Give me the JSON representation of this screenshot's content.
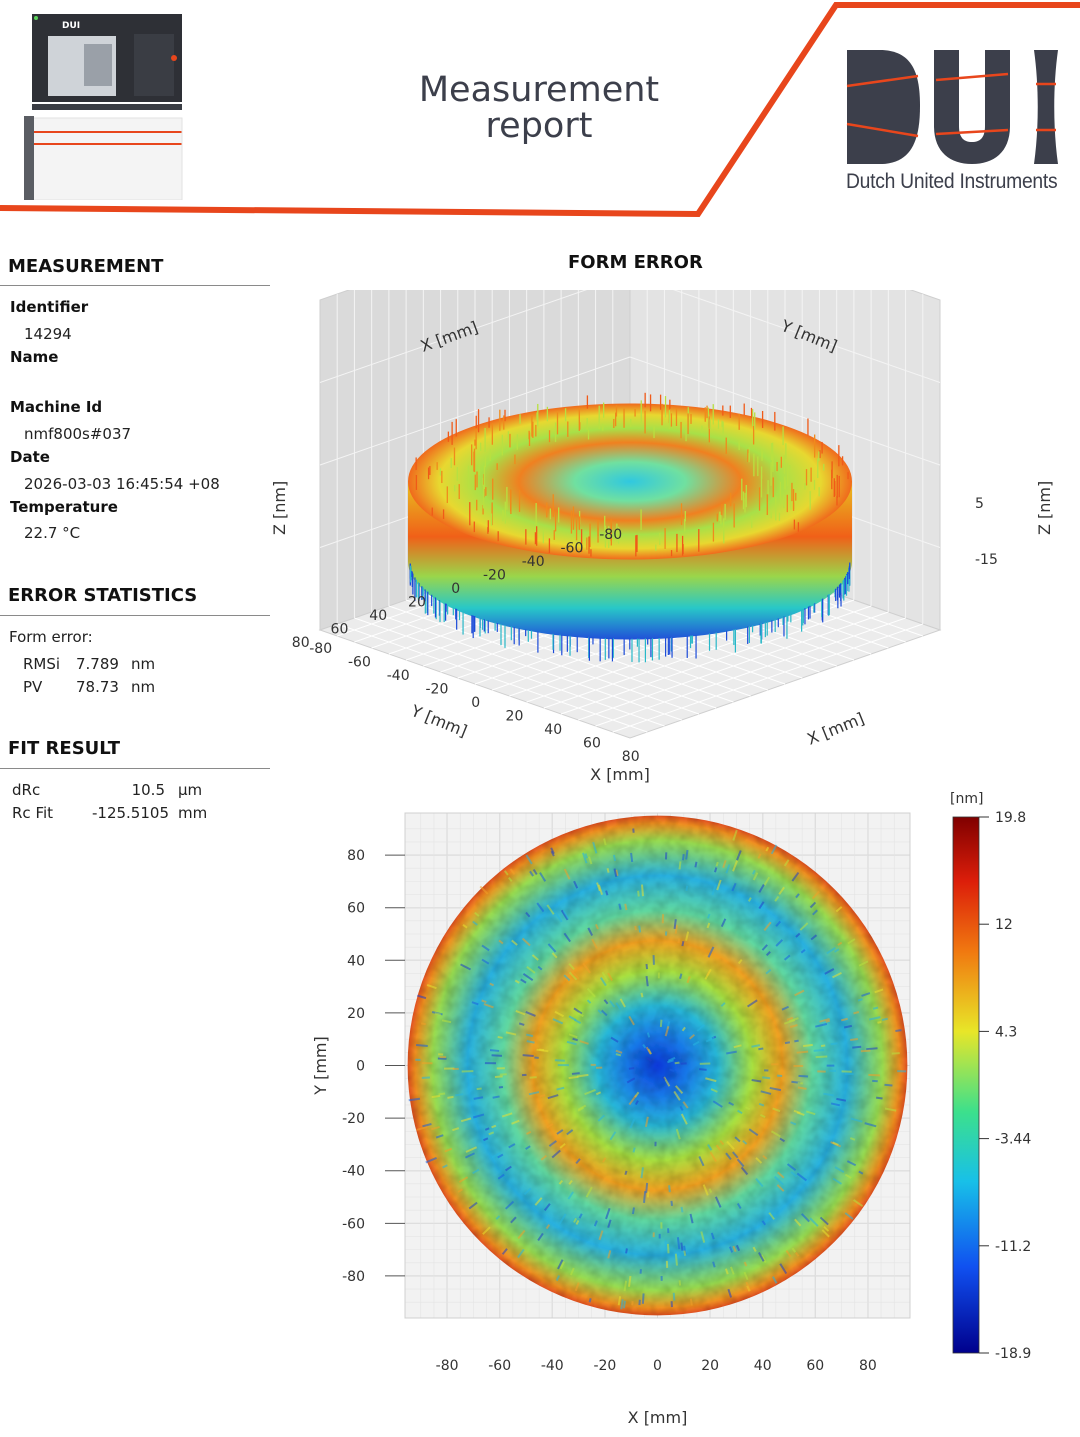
{
  "report": {
    "title_line1": "Measurement",
    "title_line2": "report",
    "logo_caption": "Dutch United Instruments",
    "logo_letters": "DUI",
    "brand_color": "#e8461c",
    "text_color": "#3c3f4b"
  },
  "measurement": {
    "heading": "MEASUREMENT",
    "identifier_label": "Identifier",
    "identifier": "14294",
    "name_label": "Name",
    "name": "",
    "machine_label": "Machine Id",
    "machine": "nmf800s#037",
    "date_label": "Date",
    "date": "2026-03-03 16:45:54 +08",
    "temperature_label": "Temperature",
    "temperature": "22.7 °C"
  },
  "error_statistics": {
    "heading": "ERROR STATISTICS",
    "form_error_label": "Form error:",
    "rows": [
      {
        "label": "RMSi",
        "value": "7.789",
        "unit": "nm"
      },
      {
        "label": "PV",
        "value": "78.73",
        "unit": "nm"
      }
    ]
  },
  "fit_result": {
    "heading": "FIT RESULT",
    "rows": [
      {
        "label": "dRc",
        "value": "10.5",
        "unit": "µm"
      },
      {
        "label": "Rc Fit",
        "value": "-125.5105",
        "unit": "mm"
      }
    ]
  },
  "form_error_plot": {
    "heading": "FORM ERROR"
  },
  "chart_data": [
    {
      "type": "surface",
      "x_label": "X [mm]",
      "y_label": "Y [mm]",
      "z_label": "Z [nm]",
      "x_ticks_left": [
        "80",
        "60",
        "40",
        "20",
        "0",
        "-20",
        "-40",
        "-60",
        "-80"
      ],
      "x_ticks_right": [
        "80",
        "60",
        "40",
        "20",
        "0",
        "-20",
        "-40",
        "-60",
        "-80"
      ],
      "z_ticks": [
        "5",
        "-15"
      ],
      "xlim": [
        -95,
        95
      ],
      "ylim": [
        -95,
        95
      ],
      "zlim": [
        -18.9,
        19.8
      ]
    },
    {
      "type": "heatmap",
      "x_label": "X [mm]",
      "y_label": "Y [mm]",
      "x_ticks": [
        "-80",
        "-60",
        "-40",
        "-20",
        "0",
        "20",
        "40",
        "60",
        "80"
      ],
      "y_ticks": [
        "80",
        "60",
        "40",
        "20",
        "0",
        "-20",
        "-40",
        "-60",
        "-80"
      ],
      "xlim": [
        -96,
        96
      ],
      "ylim": [
        -96,
        96
      ],
      "aperture_radius_mm": 95,
      "colorbar": {
        "unit": "[nm]",
        "ticks": [
          "19.8",
          "12",
          "4.3",
          "-3.44",
          "-11.2",
          "-18.9"
        ],
        "min": -18.9,
        "max": 19.8
      }
    }
  ]
}
